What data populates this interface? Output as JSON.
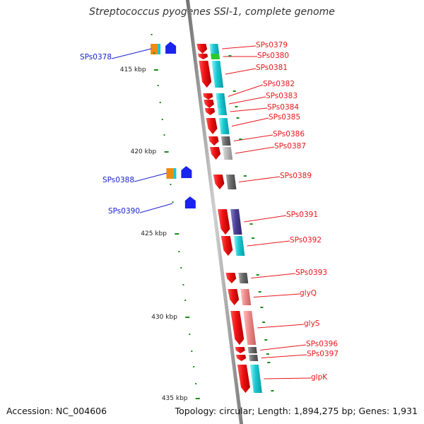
{
  "title": "Streptococcus pyogenes SSI-1, complete genome",
  "footer": {
    "accession": "Accession: NC_004606",
    "stats": "Topology: circular; Length: 1,894,275 bp; Genes: 1,931"
  },
  "colors": {
    "backbone": "#9a9a9a",
    "forward_gene": "#ee1111",
    "reverse_gene": "#1a22ee",
    "tick": "#1a8a1a",
    "cog_cyan": "#18c8d2",
    "cog_purple": "#4a3f96",
    "cog_orange": "#ee8c0f",
    "cog_gray": "#6a6a6a",
    "cog_salmon": "#ee8a8a",
    "cog_green": "#2ec82e"
  },
  "ticks": [
    "415 kbp",
    "420 kbp",
    "425 kbp",
    "430 kbp",
    "435 kbp"
  ],
  "genes_forward": [
    {
      "label": "SPs0379",
      "category": "cyan"
    },
    {
      "label": "SPs0380",
      "category": "green"
    },
    {
      "label": "SPs0381",
      "category": "cyan"
    },
    {
      "label": "SPs0382",
      "category": "cyan"
    },
    {
      "label": "SPs0383",
      "category": "cyan"
    },
    {
      "label": "SPs0384",
      "category": "cyan"
    },
    {
      "label": "SPs0385",
      "category": "cyan"
    },
    {
      "label": "SPs0386",
      "category": "gray"
    },
    {
      "label": "SPs0387",
      "category": "lightgray"
    },
    {
      "label": "SPs0389",
      "category": "gray"
    },
    {
      "label": "SPs0391",
      "category": "purple"
    },
    {
      "label": "SPs0392",
      "category": "cyan"
    },
    {
      "label": "SPs0393",
      "category": "gray"
    },
    {
      "label": "glyQ",
      "category": "salmon"
    },
    {
      "label": "glyS",
      "category": "salmon"
    },
    {
      "label": "SPs0396",
      "category": "gray"
    },
    {
      "label": "SPs0397",
      "category": "gray"
    },
    {
      "label": "glpK",
      "category": "cyan"
    }
  ],
  "genes_reverse": [
    {
      "label": "SPs0378",
      "category": "orange"
    },
    {
      "label": "SPs0388",
      "category": "orange"
    },
    {
      "label": "SPs0390",
      "category": "none"
    }
  ]
}
